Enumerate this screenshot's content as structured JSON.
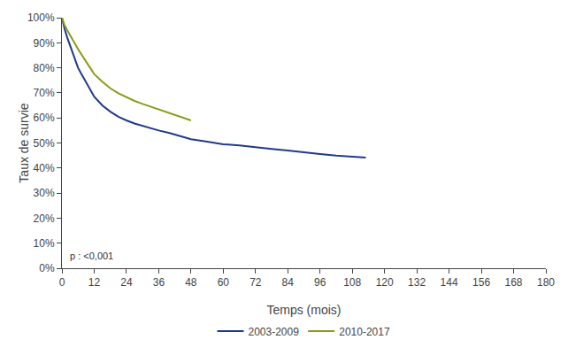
{
  "chart_data": {
    "type": "line",
    "xlabel": "Temps (mois)",
    "ylabel": "Taux de survie",
    "annotation": "p : <0,001",
    "xlim": [
      0,
      180
    ],
    "ylim": [
      0,
      1.0
    ],
    "xticks": [
      0,
      12,
      24,
      36,
      48,
      60,
      72,
      84,
      96,
      108,
      120,
      132,
      144,
      156,
      168,
      180
    ],
    "yticks": [
      {
        "value": 0.0,
        "label": "0%"
      },
      {
        "value": 0.1,
        "label": "10%"
      },
      {
        "value": 0.2,
        "label": "20%"
      },
      {
        "value": 0.3,
        "label": "30%"
      },
      {
        "value": 0.4,
        "label": "40%"
      },
      {
        "value": 0.5,
        "label": "50%"
      },
      {
        "value": 0.6,
        "label": "60%"
      },
      {
        "value": 0.7,
        "label": "70%"
      },
      {
        "value": 0.8,
        "label": "80%"
      },
      {
        "value": 0.9,
        "label": "90%"
      },
      {
        "value": 1.0,
        "label": "100%"
      }
    ],
    "grid": false,
    "legend": "bottom",
    "series": [
      {
        "name": "2003-2009",
        "color": "#1F3A8A",
        "x": [
          0,
          0.5,
          1,
          2,
          3,
          4,
          5,
          6,
          7,
          8,
          9,
          10,
          11,
          12,
          15,
          18,
          21,
          24,
          27,
          30,
          33,
          36,
          40,
          44,
          48,
          54,
          60,
          66,
          72,
          78,
          84,
          90,
          96,
          102,
          108,
          113
        ],
        "values": [
          1.0,
          0.975,
          0.955,
          0.92,
          0.89,
          0.86,
          0.83,
          0.8,
          0.78,
          0.76,
          0.74,
          0.72,
          0.7,
          0.685,
          0.65,
          0.625,
          0.605,
          0.59,
          0.578,
          0.568,
          0.558,
          0.55,
          0.54,
          0.528,
          0.515,
          0.505,
          0.495,
          0.49,
          0.482,
          0.476,
          0.47,
          0.462,
          0.456,
          0.45,
          0.446,
          0.442
        ]
      },
      {
        "name": "2010-2017",
        "color": "#8B9B1A",
        "x": [
          0,
          0.5,
          1,
          2,
          3,
          4,
          5,
          6,
          7,
          8,
          9,
          10,
          11,
          12,
          15,
          18,
          21,
          24,
          27,
          30,
          33,
          36,
          40,
          44,
          48
        ],
        "values": [
          1.0,
          0.985,
          0.97,
          0.95,
          0.93,
          0.91,
          0.892,
          0.875,
          0.858,
          0.84,
          0.822,
          0.808,
          0.792,
          0.775,
          0.745,
          0.718,
          0.698,
          0.682,
          0.668,
          0.656,
          0.645,
          0.634,
          0.62,
          0.605,
          0.59
        ]
      }
    ]
  }
}
